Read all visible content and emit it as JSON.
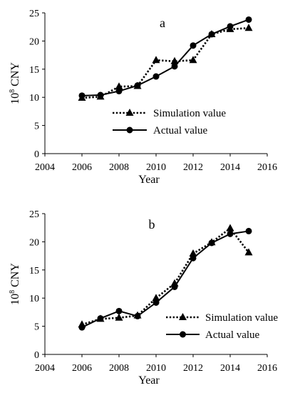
{
  "chart_data": [
    {
      "type": "line",
      "title": "a",
      "xlabel": "Year",
      "ylabel": "10^8 CNY",
      "ylabel_base": "10",
      "ylabel_exp": "8",
      "ylabel_unit": " CNY",
      "xlim": [
        2004,
        2016
      ],
      "ylim": [
        0,
        25
      ],
      "x_ticks": [
        2004,
        2006,
        2008,
        2010,
        2012,
        2014,
        2016
      ],
      "y_ticks": [
        0,
        5,
        10,
        15,
        20,
        25
      ],
      "grid": false,
      "legend": {
        "placement": "center-left"
      },
      "series": [
        {
          "name": "Simulation value",
          "marker": "triangle",
          "style": "dotted",
          "x": [
            2006,
            2007,
            2008,
            2009,
            2010,
            2011,
            2012,
            2013,
            2014,
            2015
          ],
          "values": [
            9.9,
            10.1,
            11.9,
            12.0,
            16.6,
            16.4,
            16.6,
            21.2,
            22.1,
            22.3
          ]
        },
        {
          "name": "Actual value",
          "marker": "circle",
          "style": "solid",
          "x": [
            2006,
            2007,
            2008,
            2009,
            2010,
            2011,
            2012,
            2013,
            2014,
            2015
          ],
          "values": [
            10.3,
            10.4,
            11.1,
            12.1,
            13.7,
            15.5,
            19.2,
            21.2,
            22.6,
            23.8
          ]
        }
      ]
    },
    {
      "type": "line",
      "title": "b",
      "xlabel": "Year",
      "ylabel": "10^8 CNY",
      "ylabel_base": "10",
      "ylabel_exp": "8",
      "ylabel_unit": " CNY",
      "xlim": [
        2004,
        2016
      ],
      "ylim": [
        0,
        25
      ],
      "x_ticks": [
        2004,
        2006,
        2008,
        2010,
        2012,
        2014,
        2016
      ],
      "y_ticks": [
        0,
        5,
        10,
        15,
        20,
        25
      ],
      "grid": false,
      "legend": {
        "placement": "bottom-right"
      },
      "series": [
        {
          "name": "Simulation value",
          "marker": "triangle",
          "style": "dotted",
          "x": [
            2006,
            2007,
            2008,
            2009,
            2010,
            2011,
            2012,
            2013,
            2014,
            2015
          ],
          "values": [
            5.3,
            6.3,
            6.5,
            6.9,
            10.0,
            12.6,
            17.9,
            19.9,
            22.4,
            18.1
          ]
        },
        {
          "name": "Actual value",
          "marker": "circle",
          "style": "solid",
          "x": [
            2006,
            2007,
            2008,
            2009,
            2010,
            2011,
            2012,
            2013,
            2014,
            2015
          ],
          "values": [
            4.8,
            6.4,
            7.7,
            6.8,
            9.2,
            12.0,
            17.1,
            19.8,
            21.4,
            21.9
          ]
        }
      ]
    }
  ]
}
